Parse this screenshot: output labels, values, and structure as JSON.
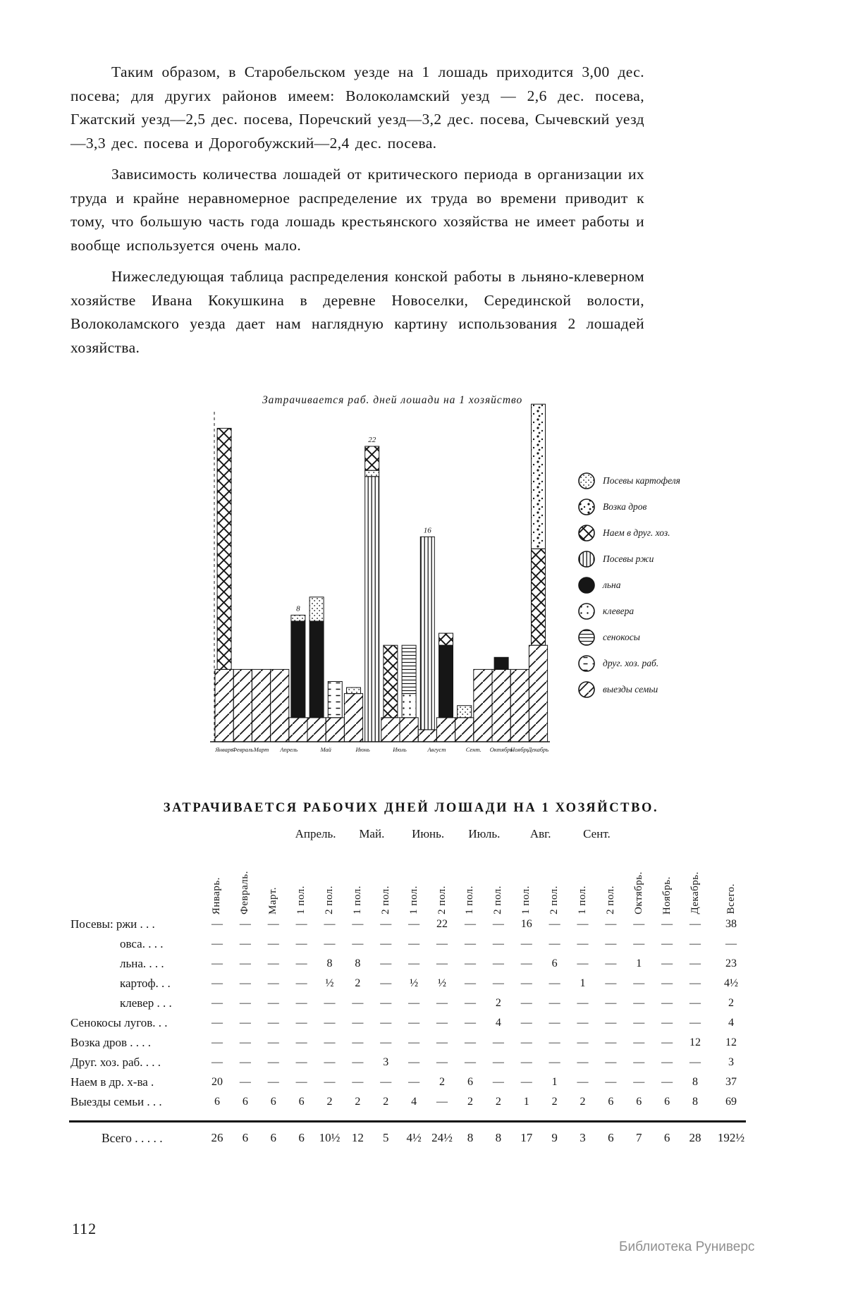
{
  "page": {
    "number": "112",
    "watermark": "Библиотека Руниверс"
  },
  "paragraphs": [
    "Таким образом, в Старобельском уезде на 1 лошадь приходится 3,00 дес. посева; для других районов имеем: Волоколамский уезд — 2,6 дес. посева, Гжатский уезд—2,5 дес. посева, Поречский уезд—3,2 дес. посева, Сычевский уезд—3,3 дес. посева и Дорогобужский—2,4 дес. посева.",
    "Зависимость количества лошадей от критического периода в организации их труда и крайне неравномерное распределение их труда во времени приводит к тому, что большую часть года лошадь крестьянского хозяйства не имеет работы и вообще используется очень мало.",
    "Нижеследующая таблица распределения конской работы в льняно-клеверном хозяйстве Ивана Кокушкина в деревне Новоселки, Серединской волости, Волоколамского уезда дает нам наглядную картину использования 2 лошадей хозяйства."
  ],
  "chart_data": {
    "type": "bar",
    "stacked": true,
    "title": "Затрачивается раб. дней лошади на 1 хозяйство",
    "ylim": [
      0,
      28
    ],
    "grid": false,
    "legend_position": "right",
    "x_categories": [
      "Январь",
      "Февраль",
      "Март",
      "Апр. 1 пол.",
      "Апр. 2 пол.",
      "Май 1 пол.",
      "Май 2 пол.",
      "Июнь 1 пол.",
      "Июнь 2 пол.",
      "Июль 1 пол.",
      "Июль 2 пол.",
      "Авг. 1 пол.",
      "Авг. 2 пол.",
      "Сент. 1 пол.",
      "Сент. 2 пол.",
      "Октябрь",
      "Ноябрь",
      "Декабрь"
    ],
    "series": [
      {
        "name": "выезды семьи",
        "pattern": "diag",
        "band": true,
        "values": [
          6,
          6,
          6,
          6,
          2,
          2,
          2,
          4,
          0,
          2,
          2,
          1,
          2,
          2,
          6,
          6,
          6,
          8
        ]
      },
      {
        "name": "посевы ржи",
        "pattern": "vert",
        "band": false,
        "values": [
          0,
          0,
          0,
          0,
          0,
          0,
          0,
          0,
          22,
          0,
          0,
          16,
          0,
          0,
          0,
          0,
          0,
          0
        ]
      },
      {
        "name": "посевы льна",
        "pattern": "solid",
        "band": false,
        "values": [
          0,
          0,
          0,
          0,
          8,
          8,
          0,
          0,
          0,
          0,
          0,
          0,
          6,
          0,
          0,
          1,
          0,
          0
        ]
      },
      {
        "name": "посевы картофеля",
        "pattern": "stipple",
        "band": false,
        "values": [
          0,
          0,
          0,
          0,
          0.5,
          2,
          0,
          0.5,
          0.5,
          0,
          0,
          0,
          0,
          1,
          0,
          0,
          0,
          0
        ]
      },
      {
        "name": "посевы клевера",
        "pattern": "dots",
        "band": false,
        "values": [
          0,
          0,
          0,
          0,
          0,
          0,
          0,
          0,
          0,
          0,
          2,
          0,
          0,
          0,
          0,
          0,
          0,
          0
        ]
      },
      {
        "name": "сенокосы лугов",
        "pattern": "horiz",
        "band": false,
        "values": [
          0,
          0,
          0,
          0,
          0,
          0,
          0,
          0,
          0,
          0,
          4,
          0,
          0,
          0,
          0,
          0,
          0,
          0
        ]
      },
      {
        "name": "друг. хоз. раб.",
        "pattern": "dash",
        "band": false,
        "values": [
          0,
          0,
          0,
          0,
          0,
          0,
          3,
          0,
          0,
          0,
          0,
          0,
          0,
          0,
          0,
          0,
          0,
          0
        ]
      },
      {
        "name": "наем в друг. хоз.",
        "pattern": "cross",
        "band": false,
        "values": [
          20,
          0,
          0,
          0,
          0,
          0,
          0,
          0,
          2,
          6,
          0,
          0,
          1,
          0,
          0,
          0,
          0,
          8
        ]
      },
      {
        "name": "возка дров",
        "pattern": "speck",
        "band": false,
        "values": [
          0,
          0,
          0,
          0,
          0,
          0,
          0,
          0,
          0,
          0,
          0,
          0,
          0,
          0,
          0,
          0,
          0,
          12
        ]
      }
    ],
    "annotations": [
      {
        "col": 4,
        "text": "8"
      },
      {
        "col": 8,
        "text": "22"
      },
      {
        "col": 11,
        "text": "16"
      }
    ],
    "months": [
      {
        "label": "Январь",
        "cols": [
          0
        ]
      },
      {
        "label": "Февраль",
        "cols": [
          1
        ]
      },
      {
        "label": "Март",
        "cols": [
          2
        ]
      },
      {
        "label": "Апрель",
        "cols": [
          3,
          4
        ]
      },
      {
        "label": "Май",
        "cols": [
          5,
          6
        ]
      },
      {
        "label": "Июнь",
        "cols": [
          7,
          8
        ]
      },
      {
        "label": "Июль",
        "cols": [
          9,
          10
        ]
      },
      {
        "label": "Август",
        "cols": [
          11,
          12
        ]
      },
      {
        "label": "Сент.",
        "cols": [
          13,
          14
        ]
      },
      {
        "label": "Октябрь",
        "cols": [
          15
        ]
      },
      {
        "label": "Ноябрь",
        "cols": [
          16
        ]
      },
      {
        "label": "Декабрь",
        "cols": [
          17
        ]
      }
    ],
    "legend": [
      {
        "label": "Посевы картофеля",
        "pattern": "stipple"
      },
      {
        "label": "Возка дров",
        "pattern": "speck"
      },
      {
        "label": "Наем в друг. хоз.",
        "pattern": "cross"
      },
      {
        "label": "Посевы ржи",
        "pattern": "vert"
      },
      {
        "label": "льна",
        "pattern": "solid"
      },
      {
        "label": "клевера",
        "pattern": "dots"
      },
      {
        "label": "сенокосы",
        "pattern": "horiz"
      },
      {
        "label": "друг. хоз. раб.",
        "pattern": "dash"
      },
      {
        "label": "выезды семьи",
        "pattern": "diag"
      }
    ]
  },
  "table": {
    "title": "ЗАТРАЧИВАЕТСЯ РАБОЧИХ ДНЕЙ ЛОШАДИ НА 1 ХОЗЯЙСТВО.",
    "group_headers": [
      {
        "label": "Апрель."
      },
      {
        "label": "Май."
      },
      {
        "label": "Июнь."
      },
      {
        "label": "Июль."
      },
      {
        "label": "Авг."
      },
      {
        "label": "Сент."
      }
    ],
    "columns": [
      "Январь.",
      "Февраль.",
      "Март.",
      "1 пол.",
      "2 пол.",
      "1 пол.",
      "2 пол.",
      "1 пол.",
      "2 пол.",
      "1 пол.",
      "2 пол.",
      "1 пол.",
      "2 пол.",
      "1 пол.",
      "2 пол.",
      "Октябрь.",
      "Ноябрь.",
      "Декабрь.",
      "Всего."
    ],
    "rows": [
      {
        "label": "Посевы: ржи . . .",
        "indent": 0,
        "values": [
          "—",
          "—",
          "—",
          "—",
          "—",
          "—",
          "—",
          "—",
          "22",
          "—",
          "—",
          "16",
          "—",
          "—",
          "—",
          "—",
          "—",
          "—",
          "38"
        ]
      },
      {
        "label": "овса. . . .",
        "indent": 1,
        "values": [
          "—",
          "—",
          "—",
          "—",
          "—",
          "—",
          "—",
          "—",
          "—",
          "—",
          "—",
          "—",
          "—",
          "—",
          "—",
          "—",
          "—",
          "—",
          "—"
        ]
      },
      {
        "label": "льна. . . .",
        "indent": 1,
        "values": [
          "—",
          "—",
          "—",
          "—",
          "8",
          "8",
          "—",
          "—",
          "—",
          "—",
          "—",
          "—",
          "6",
          "—",
          "—",
          "1",
          "—",
          "—",
          "23"
        ]
      },
      {
        "label": "картоф. . .",
        "indent": 1,
        "values": [
          "—",
          "—",
          "—",
          "—",
          "½",
          "2",
          "—",
          "½",
          "½",
          "—",
          "—",
          "—",
          "—",
          "1",
          "—",
          "—",
          "—",
          "—",
          "4½"
        ]
      },
      {
        "label": "клевер . . .",
        "indent": 1,
        "values": [
          "—",
          "—",
          "—",
          "—",
          "—",
          "—",
          "—",
          "—",
          "—",
          "—",
          "2",
          "—",
          "—",
          "—",
          "—",
          "—",
          "—",
          "—",
          "2"
        ]
      },
      {
        "label": "Сенокосы лугов. . .",
        "indent": 0,
        "values": [
          "—",
          "—",
          "—",
          "—",
          "—",
          "—",
          "—",
          "—",
          "—",
          "—",
          "4",
          "—",
          "—",
          "—",
          "—",
          "—",
          "—",
          "—",
          "4"
        ]
      },
      {
        "label": "Возка дров . . . .",
        "indent": 0,
        "values": [
          "—",
          "—",
          "—",
          "—",
          "—",
          "—",
          "—",
          "—",
          "—",
          "—",
          "—",
          "—",
          "—",
          "—",
          "—",
          "—",
          "—",
          "12",
          "12"
        ]
      },
      {
        "label": "Друг. хоз. раб. . . .",
        "indent": 0,
        "values": [
          "—",
          "—",
          "—",
          "—",
          "—",
          "—",
          "3",
          "—",
          "—",
          "—",
          "—",
          "—",
          "—",
          "—",
          "—",
          "—",
          "—",
          "—",
          "3"
        ]
      },
      {
        "label": "Наем в др. х-ва .",
        "indent": 0,
        "values": [
          "20",
          "—",
          "—",
          "—",
          "—",
          "—",
          "—",
          "—",
          "2",
          "6",
          "—",
          "—",
          "1",
          "—",
          "—",
          "—",
          "—",
          "8",
          "37"
        ]
      },
      {
        "label": "Выезды семьи . . .",
        "indent": 0,
        "values": [
          "6",
          "6",
          "6",
          "6",
          "2",
          "2",
          "2",
          "4",
          "—",
          "2",
          "2",
          "1",
          "2",
          "2",
          "6",
          "6",
          "6",
          "8",
          "69"
        ]
      }
    ],
    "total_row": {
      "label": "Всего . . . . .",
      "values": [
        "26",
        "6",
        "6",
        "6",
        "10½",
        "12",
        "5",
        "4½",
        "24½",
        "8",
        "8",
        "17",
        "9",
        "3",
        "6",
        "7",
        "6",
        "28",
        "192½"
      ]
    }
  }
}
